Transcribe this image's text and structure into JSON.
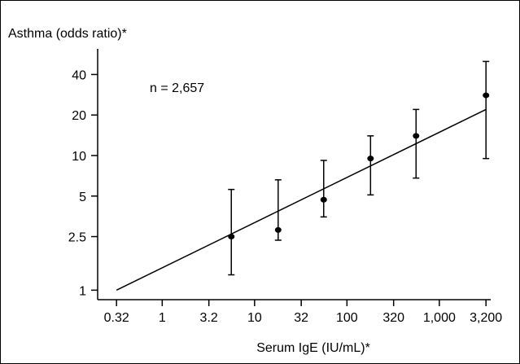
{
  "chart_data": {
    "type": "scatter",
    "title": "",
    "ylabel": "Asthma (odds ratio)*",
    "xlabel": "Serum IgE (IU/mL)*",
    "annotation": "n = 2,657",
    "x_scale": "log",
    "y_scale": "log",
    "xlim": [
      0.2,
      3600
    ],
    "ylim": [
      0.85,
      62
    ],
    "x_ticks": [
      0.32,
      1,
      3.2,
      10,
      32,
      100,
      320,
      1000,
      3200
    ],
    "x_tick_labels": [
      "0.32",
      "1",
      "3.2",
      "10",
      "32",
      "100",
      "320",
      "1,000",
      "3,200"
    ],
    "y_ticks": [
      1,
      2.5,
      5,
      10,
      20,
      40
    ],
    "y_tick_labels": [
      "1",
      "2.5",
      "5",
      "10",
      "20",
      "40"
    ],
    "grid": false,
    "points": [
      {
        "x": 5.6,
        "y": 2.5,
        "lower": 1.3,
        "upper": 5.6
      },
      {
        "x": 18,
        "y": 2.8,
        "lower": 2.35,
        "upper": 6.6
      },
      {
        "x": 56,
        "y": 4.7,
        "lower": 3.5,
        "upper": 9.2
      },
      {
        "x": 180,
        "y": 9.5,
        "lower": 5.1,
        "upper": 14
      },
      {
        "x": 560,
        "y": 14,
        "lower": 6.8,
        "upper": 22
      },
      {
        "x": 3200,
        "y": 28,
        "lower": 9.5,
        "upper": 50
      }
    ],
    "fit_line": {
      "x": [
        0.32,
        3200
      ],
      "y": [
        1.0,
        22
      ]
    }
  }
}
